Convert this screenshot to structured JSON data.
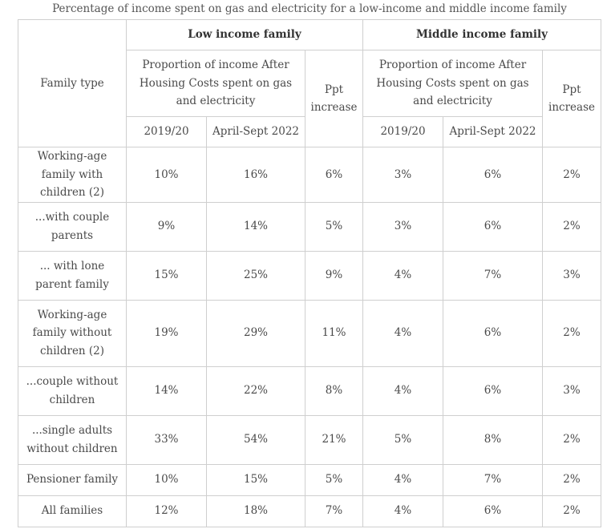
{
  "caption": "Percentage of income spent on gas and electricity for a low-income and middle income family",
  "header": {
    "family_type": "Family type",
    "low_income": "Low income family",
    "middle_income": "Middle income family",
    "proportion_low": "Proportion of income After Housing Costs spent on gas and electricity",
    "proportion_mid": "Proportion of income After Housing Costs spent on gas and electricity",
    "ppt_low": "Ppt increase",
    "ppt_mid": "Ppt increase",
    "y1_low": "2019/20",
    "y2_low": "April-Sept 2022",
    "y1_mid": "2019/20",
    "y2_mid": "April-Sept 2022"
  },
  "rows": [
    {
      "label": "Working-age family with children (2)",
      "cells": [
        "10%",
        "16%",
        "6%",
        "3%",
        "6%",
        "2%"
      ]
    },
    {
      "label": "...with couple parents",
      "cells": [
        "9%",
        "14%",
        "5%",
        "3%",
        "6%",
        "2%"
      ]
    },
    {
      "label": "... with lone parent family",
      "cells": [
        "15%",
        "25%",
        "9%",
        "4%",
        "7%",
        "3%"
      ]
    },
    {
      "label": "Working-age family without children (2)",
      "cells": [
        "19%",
        "29%",
        "11%",
        "4%",
        "6%",
        "2%"
      ]
    },
    {
      "label": "...couple without children",
      "cells": [
        "14%",
        "22%",
        "8%",
        "4%",
        "6%",
        "3%"
      ]
    },
    {
      "label": "...single adults without children",
      "cells": [
        "33%",
        "54%",
        "21%",
        "5%",
        "8%",
        "2%"
      ]
    },
    {
      "label": "Pensioner family",
      "cells": [
        "10%",
        "15%",
        "5%",
        "4%",
        "7%",
        "2%"
      ]
    },
    {
      "label": "All families",
      "cells": [
        "12%",
        "18%",
        "7%",
        "4%",
        "6%",
        "2%"
      ]
    }
  ]
}
